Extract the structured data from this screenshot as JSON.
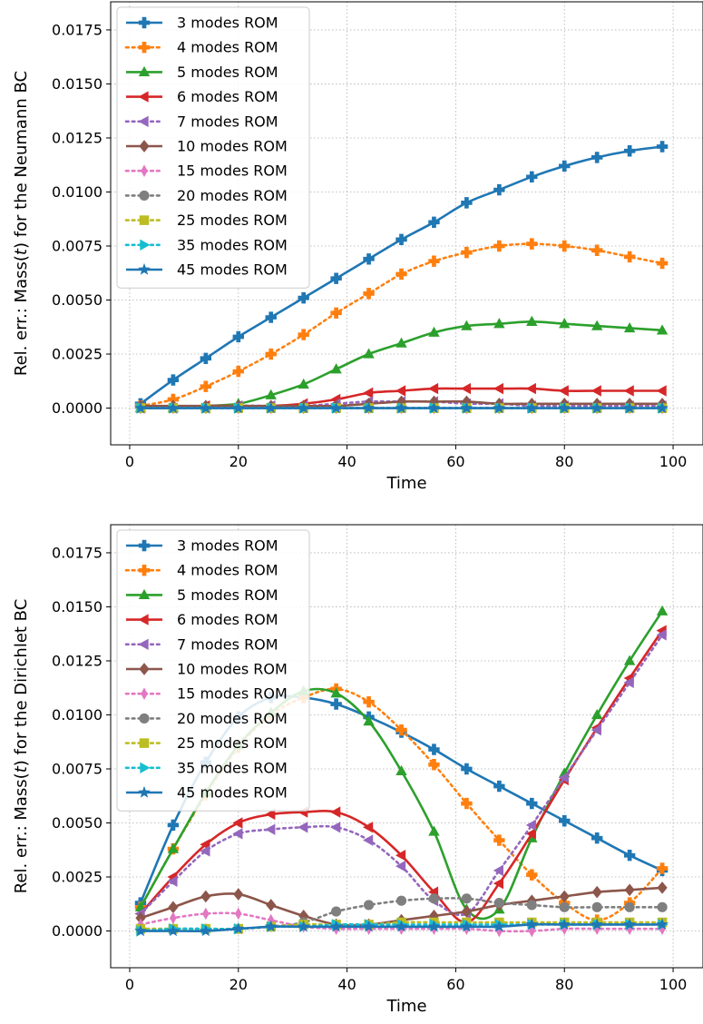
{
  "chart_data": [
    {
      "type": "line",
      "xlabel": "Time",
      "ylabel": "Rel. err.: Mass(t) for the Neumann BC",
      "xlim": [
        -3.5,
        105.5
      ],
      "ylim": [
        -0.0017,
        0.0188
      ],
      "xticks": [
        0,
        20,
        40,
        60,
        80,
        100
      ],
      "yticks": [
        0.0,
        0.0025,
        0.005,
        0.0075,
        0.01,
        0.0125,
        0.015,
        0.0175
      ],
      "ytick_labels": [
        "0.0000",
        "0.0025",
        "0.0050",
        "0.0075",
        "0.0100",
        "0.0125",
        "0.0150",
        "0.0175"
      ],
      "grid": true,
      "legend_position": "top-left",
      "x": [
        2,
        8,
        14,
        20,
        26,
        32,
        38,
        44,
        50,
        56,
        62,
        68,
        74,
        80,
        86,
        92,
        98
      ],
      "series": [
        {
          "name": "3 modes ROM",
          "values": [
            0.0002,
            0.0013,
            0.0023,
            0.0033,
            0.0042,
            0.0051,
            0.006,
            0.0069,
            0.0078,
            0.0086,
            0.0095,
            0.0101,
            0.0107,
            0.0112,
            0.0116,
            0.0119,
            0.0121
          ]
        },
        {
          "name": "4 modes ROM",
          "values": [
            0.0001,
            0.0004,
            0.001,
            0.0017,
            0.0025,
            0.0034,
            0.0044,
            0.0053,
            0.0062,
            0.0068,
            0.0072,
            0.0075,
            0.0076,
            0.0075,
            0.0073,
            0.007,
            0.0067
          ]
        },
        {
          "name": "5 modes ROM",
          "values": [
            0.0,
            0.0,
            0.0001,
            0.0002,
            0.0006,
            0.0011,
            0.0018,
            0.0025,
            0.003,
            0.0035,
            0.0038,
            0.0039,
            0.004,
            0.0039,
            0.0038,
            0.0037,
            0.0036
          ]
        },
        {
          "name": "6 modes ROM",
          "values": [
            0.0,
            0.0,
            0.0001,
            0.0001,
            0.0001,
            0.0002,
            0.0004,
            0.0007,
            0.0008,
            0.0009,
            0.0009,
            0.0009,
            0.0009,
            0.0008,
            0.0008,
            0.0008,
            0.0008
          ]
        },
        {
          "name": "7 modes ROM",
          "values": [
            0.0,
            0.0,
            0.0,
            0.0001,
            0.0001,
            0.0001,
            0.0002,
            0.0003,
            0.0003,
            0.0003,
            0.0002,
            0.0002,
            0.0001,
            0.0001,
            0.0001,
            0.0001,
            0.0001
          ]
        },
        {
          "name": "10 modes ROM",
          "values": [
            0.0001,
            0.0001,
            0.0001,
            0.0001,
            0.0001,
            0.0001,
            0.0001,
            0.0002,
            0.0003,
            0.0003,
            0.0003,
            0.0002,
            0.0002,
            0.0002,
            0.0002,
            0.0002,
            0.0002
          ]
        },
        {
          "name": "15 modes ROM",
          "values": [
            0.0,
            0.0,
            0.0,
            0.0,
            0.0,
            0.0,
            0.0,
            0.0,
            0.0,
            0.0,
            0.0,
            0.0,
            0.0,
            0.0,
            0.0,
            0.0,
            0.0
          ]
        },
        {
          "name": "20 modes ROM",
          "values": [
            0.0,
            0.0,
            0.0,
            0.0,
            0.0,
            0.0,
            0.0,
            0.0,
            0.0,
            0.0,
            0.0,
            0.0,
            0.0,
            0.0,
            0.0,
            0.0,
            0.0
          ]
        },
        {
          "name": "25 modes ROM",
          "values": [
            0.0,
            0.0,
            0.0,
            0.0,
            0.0,
            0.0,
            0.0,
            0.0,
            0.0,
            0.0,
            0.0,
            0.0,
            0.0,
            0.0,
            0.0,
            0.0,
            0.0
          ]
        },
        {
          "name": "35 modes ROM",
          "values": [
            0.0,
            0.0,
            0.0,
            0.0,
            0.0,
            0.0,
            0.0,
            0.0,
            0.0,
            0.0,
            0.0,
            0.0,
            0.0,
            0.0,
            0.0,
            0.0,
            0.0
          ]
        },
        {
          "name": "45 modes ROM",
          "values": [
            0.0,
            0.0,
            0.0,
            0.0,
            0.0,
            0.0,
            0.0,
            0.0,
            0.0,
            0.0,
            0.0,
            0.0,
            0.0,
            0.0,
            0.0,
            0.0,
            0.0
          ]
        }
      ]
    },
    {
      "type": "line",
      "xlabel": "Time",
      "ylabel": "Rel. err.: Mass(t) for the Dirichlet BC",
      "xlim": [
        -3.5,
        105.5
      ],
      "ylim": [
        -0.0017,
        0.0188
      ],
      "xticks": [
        0,
        20,
        40,
        60,
        80,
        100
      ],
      "yticks": [
        0.0,
        0.0025,
        0.005,
        0.0075,
        0.01,
        0.0125,
        0.015,
        0.0175
      ],
      "ytick_labels": [
        "0.0000",
        "0.0025",
        "0.0050",
        "0.0075",
        "0.0100",
        "0.0125",
        "0.0150",
        "0.0175"
      ],
      "grid": true,
      "legend_position": "top-left",
      "x": [
        2,
        8,
        14,
        20,
        26,
        32,
        38,
        44,
        50,
        56,
        62,
        68,
        74,
        80,
        86,
        92,
        98
      ],
      "series": [
        {
          "name": "3 modes ROM",
          "values": [
            0.0013,
            0.0049,
            0.0078,
            0.0099,
            0.0108,
            0.0108,
            0.0105,
            0.0099,
            0.0092,
            0.0084,
            0.0075,
            0.0067,
            0.0059,
            0.0051,
            0.0043,
            0.0035,
            0.0028
          ]
        },
        {
          "name": "4 modes ROM",
          "values": [
            0.0011,
            0.0038,
            0.0063,
            0.0085,
            0.01,
            0.0108,
            0.0112,
            0.0106,
            0.0093,
            0.0077,
            0.0059,
            0.0042,
            0.0026,
            0.0013,
            0.0005,
            0.0013,
            0.0029
          ]
        },
        {
          "name": "5 modes ROM",
          "values": [
            0.0011,
            0.0038,
            0.0064,
            0.0086,
            0.0101,
            0.0111,
            0.011,
            0.0097,
            0.0074,
            0.0046,
            0.001,
            0.001,
            0.0043,
            0.0073,
            0.01,
            0.0125,
            0.0148
          ]
        },
        {
          "name": "6 modes ROM",
          "values": [
            0.0008,
            0.0025,
            0.004,
            0.005,
            0.0054,
            0.0055,
            0.0055,
            0.0048,
            0.0035,
            0.0018,
            0.0004,
            0.0022,
            0.0045,
            0.007,
            0.0094,
            0.0117,
            0.0139
          ]
        },
        {
          "name": "7 modes ROM",
          "values": [
            0.0008,
            0.0023,
            0.0037,
            0.0045,
            0.0047,
            0.0048,
            0.0048,
            0.0042,
            0.003,
            0.0014,
            0.0008,
            0.0028,
            0.0049,
            0.0071,
            0.0093,
            0.0115,
            0.0137
          ]
        },
        {
          "name": "10 modes ROM",
          "values": [
            0.0006,
            0.0011,
            0.0016,
            0.0017,
            0.0012,
            0.0007,
            0.0003,
            0.0003,
            0.0005,
            0.0007,
            0.0009,
            0.0012,
            0.0014,
            0.0016,
            0.0018,
            0.0019,
            0.002
          ]
        },
        {
          "name": "15 modes ROM",
          "values": [
            0.0003,
            0.0006,
            0.0008,
            0.0008,
            0.0005,
            0.0002,
            0.0001,
            0.0001,
            0.0001,
            0.0001,
            0.0001,
            0.0,
            0.0,
            0.0001,
            0.0001,
            0.0001,
            0.0001
          ]
        },
        {
          "name": "20 modes ROM",
          "values": [
            0.0001,
            0.0001,
            0.0001,
            0.0001,
            0.0002,
            0.0004,
            0.0009,
            0.0012,
            0.0014,
            0.0015,
            0.0015,
            0.0013,
            0.0012,
            0.0011,
            0.0011,
            0.0011,
            0.0011
          ]
        },
        {
          "name": "25 modes ROM",
          "values": [
            0.0001,
            0.0001,
            0.0001,
            0.0001,
            0.0002,
            0.0003,
            0.0003,
            0.0003,
            0.0004,
            0.0004,
            0.0004,
            0.0004,
            0.0004,
            0.0004,
            0.0004,
            0.0004,
            0.0004
          ]
        },
        {
          "name": "35 modes ROM",
          "values": [
            0.0,
            0.0001,
            0.0001,
            0.0001,
            0.0002,
            0.0002,
            0.0003,
            0.0003,
            0.0003,
            0.0003,
            0.0003,
            0.0003,
            0.0003,
            0.0003,
            0.0003,
            0.0003,
            0.0003
          ]
        },
        {
          "name": "45 modes ROM",
          "values": [
            0.0,
            0.0,
            0.0,
            0.0001,
            0.0002,
            0.0002,
            0.0002,
            0.0002,
            0.0002,
            0.0002,
            0.0002,
            0.0002,
            0.0003,
            0.0003,
            0.0003,
            0.0003,
            0.0003
          ]
        }
      ]
    }
  ],
  "series_styles": [
    {
      "color": "#1f77b4",
      "dash": "solid",
      "marker": "plus"
    },
    {
      "color": "#ff7f0e",
      "dash": "dotted",
      "marker": "plus"
    },
    {
      "color": "#2ca02c",
      "dash": "solid",
      "marker": "triangle-up"
    },
    {
      "color": "#d62728",
      "dash": "solid",
      "marker": "triangle-left"
    },
    {
      "color": "#9467bd",
      "dash": "dotted",
      "marker": "triangle-left"
    },
    {
      "color": "#8c564b",
      "dash": "solid",
      "marker": "diamond"
    },
    {
      "color": "#e377c2",
      "dash": "dotted",
      "marker": "thin-diamond"
    },
    {
      "color": "#7f7f7f",
      "dash": "dotted",
      "marker": "circle"
    },
    {
      "color": "#bcbd22",
      "dash": "dotted",
      "marker": "square"
    },
    {
      "color": "#17becf",
      "dash": "dotted",
      "marker": "triangle-right"
    },
    {
      "color": "#1f77b4",
      "dash": "solid",
      "marker": "star"
    }
  ]
}
